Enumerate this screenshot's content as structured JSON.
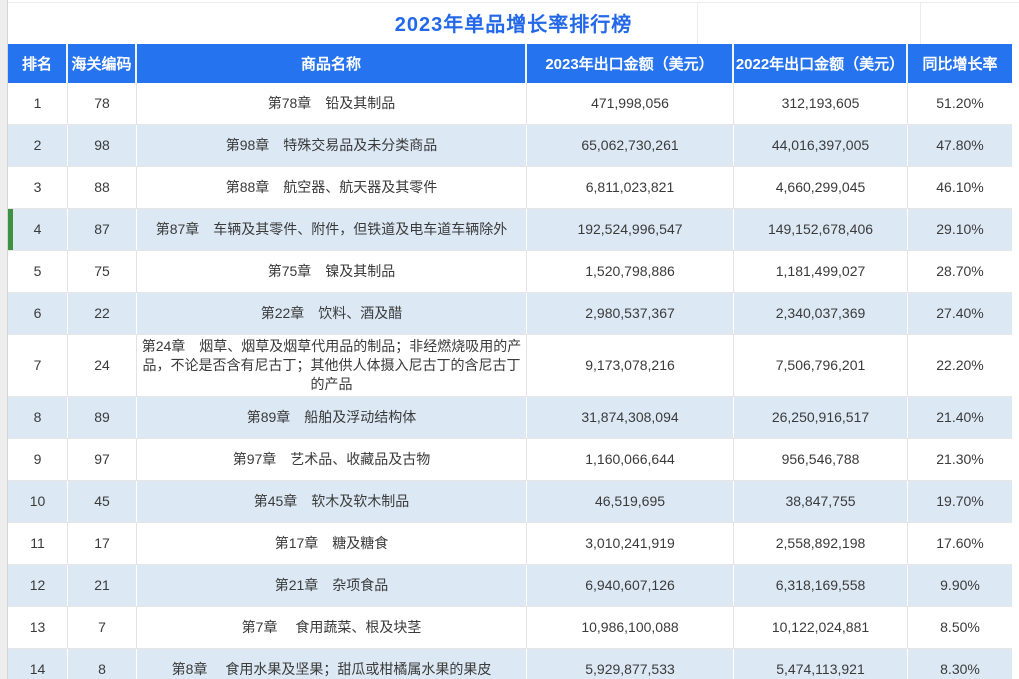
{
  "title": "2023年单品增长率排行榜",
  "colors": {
    "header_bg": "#2673f0",
    "title_text": "#2268e8",
    "row_alt_bg": "#dce9f5",
    "highlight_bar": "#3e9142"
  },
  "table": {
    "columns": [
      "排名",
      "海关编码",
      "商品名称",
      "2023年出口金额（美元）",
      "2022年出口金额（美元）",
      "同比增长率"
    ],
    "rows": [
      {
        "rank": "1",
        "code": "78",
        "name": "第78章　铅及其制品",
        "amount_2023": "471,998,056",
        "amount_2022": "312,193,605",
        "growth": "51.20%",
        "highlighted": false
      },
      {
        "rank": "2",
        "code": "98",
        "name": "第98章　特殊交易品及未分类商品",
        "amount_2023": "65,062,730,261",
        "amount_2022": "44,016,397,005",
        "growth": "47.80%",
        "highlighted": false
      },
      {
        "rank": "3",
        "code": "88",
        "name": "第88章　航空器、航天器及其零件",
        "amount_2023": "6,811,023,821",
        "amount_2022": "4,660,299,045",
        "growth": "46.10%",
        "highlighted": false
      },
      {
        "rank": "4",
        "code": "87",
        "name": "第87章　车辆及其零件、附件，但铁道及电车道车辆除外",
        "amount_2023": "192,524,996,547",
        "amount_2022": "149,152,678,406",
        "growth": "29.10%",
        "highlighted": true
      },
      {
        "rank": "5",
        "code": "75",
        "name": "第75章　镍及其制品",
        "amount_2023": "1,520,798,886",
        "amount_2022": "1,181,499,027",
        "growth": "28.70%",
        "highlighted": false
      },
      {
        "rank": "6",
        "code": "22",
        "name": "第22章　饮料、酒及醋",
        "amount_2023": "2,980,537,367",
        "amount_2022": "2,340,037,369",
        "growth": "27.40%",
        "highlighted": false
      },
      {
        "rank": "7",
        "code": "24",
        "name": "第24章　烟草、烟草及烟草代用品的制品；非经燃烧吸用的产品，不论是否含有尼古丁；其他供人体摄入尼古丁的含尼古丁的产品",
        "amount_2023": "9,173,078,216",
        "amount_2022": "7,506,796,201",
        "growth": "22.20%",
        "highlighted": false
      },
      {
        "rank": "8",
        "code": "89",
        "name": "第89章　船舶及浮动结构体",
        "amount_2023": "31,874,308,094",
        "amount_2022": "26,250,916,517",
        "growth": "21.40%",
        "highlighted": false
      },
      {
        "rank": "9",
        "code": "97",
        "name": "第97章　艺术品、收藏品及古物",
        "amount_2023": "1,160,066,644",
        "amount_2022": "956,546,788",
        "growth": "21.30%",
        "highlighted": false
      },
      {
        "rank": "10",
        "code": "45",
        "name": "第45章　软木及软木制品",
        "amount_2023": "46,519,695",
        "amount_2022": "38,847,755",
        "growth": "19.70%",
        "highlighted": false
      },
      {
        "rank": "11",
        "code": "17",
        "name": "第17章　糖及糖食",
        "amount_2023": "3,010,241,919",
        "amount_2022": "2,558,892,198",
        "growth": "17.60%",
        "highlighted": false
      },
      {
        "rank": "12",
        "code": "21",
        "name": "第21章　杂项食品",
        "amount_2023": "6,940,607,126",
        "amount_2022": "6,318,169,558",
        "growth": "9.90%",
        "highlighted": false
      },
      {
        "rank": "13",
        "code": "7",
        "name": "第7章　 食用蔬菜、根及块茎",
        "amount_2023": "10,986,100,088",
        "amount_2022": "10,122,024,881",
        "growth": "8.50%",
        "highlighted": false
      },
      {
        "rank": "14",
        "code": "8",
        "name": "第8章　 食用水果及坚果；甜瓜或柑橘属水果的果皮",
        "amount_2023": "5,929,877,533",
        "amount_2022": "5,474,113,921",
        "growth": "8.30%",
        "highlighted": false
      }
    ]
  },
  "chart_data": {
    "type": "table",
    "title": "2023年单品增长率排行榜",
    "columns": [
      "排名",
      "海关编码",
      "商品名称",
      "2023年出口金额（美元）",
      "2022年出口金额（美元）",
      "同比增长率"
    ],
    "rows": [
      [
        1,
        78,
        "第78章 铅及其制品",
        471998056,
        312193605,
        "51.20%"
      ],
      [
        2,
        98,
        "第98章 特殊交易品及未分类商品",
        65062730261,
        44016397005,
        "47.80%"
      ],
      [
        3,
        88,
        "第88章 航空器、航天器及其零件",
        6811023821,
        4660299045,
        "46.10%"
      ],
      [
        4,
        87,
        "第87章 车辆及其零件、附件，但铁道及电车道车辆除外",
        192524996547,
        149152678406,
        "29.10%"
      ],
      [
        5,
        75,
        "第75章 镍及其制品",
        1520798886,
        1181499027,
        "28.70%"
      ],
      [
        6,
        22,
        "第22章 饮料、酒及醋",
        2980537367,
        2340037369,
        "27.40%"
      ],
      [
        7,
        24,
        "第24章 烟草、烟草及烟草代用品的制品；非经燃烧吸用的产品，不论是否含有尼古丁；其他供人体摄入尼古丁的含尼古丁的产品",
        9173078216,
        7506796201,
        "22.20%"
      ],
      [
        8,
        89,
        "第89章 船舶及浮动结构体",
        31874308094,
        26250916517,
        "21.40%"
      ],
      [
        9,
        97,
        "第97章 艺术品、收藏品及古物",
        1160066644,
        956546788,
        "21.30%"
      ],
      [
        10,
        45,
        "第45章 软木及软木制品",
        46519695,
        38847755,
        "19.70%"
      ],
      [
        11,
        17,
        "第17章 糖及糖食",
        3010241919,
        2558892198,
        "17.60%"
      ],
      [
        12,
        21,
        "第21章 杂项食品",
        6940607126,
        6318169558,
        "9.90%"
      ],
      [
        13,
        7,
        "第7章 食用蔬菜、根及块茎",
        10986100088,
        10122024881,
        "8.50%"
      ],
      [
        14,
        8,
        "第8章 食用水果及坚果；甜瓜或柑橘属水果的果皮",
        5929877533,
        5474113921,
        "8.30%"
      ]
    ]
  }
}
